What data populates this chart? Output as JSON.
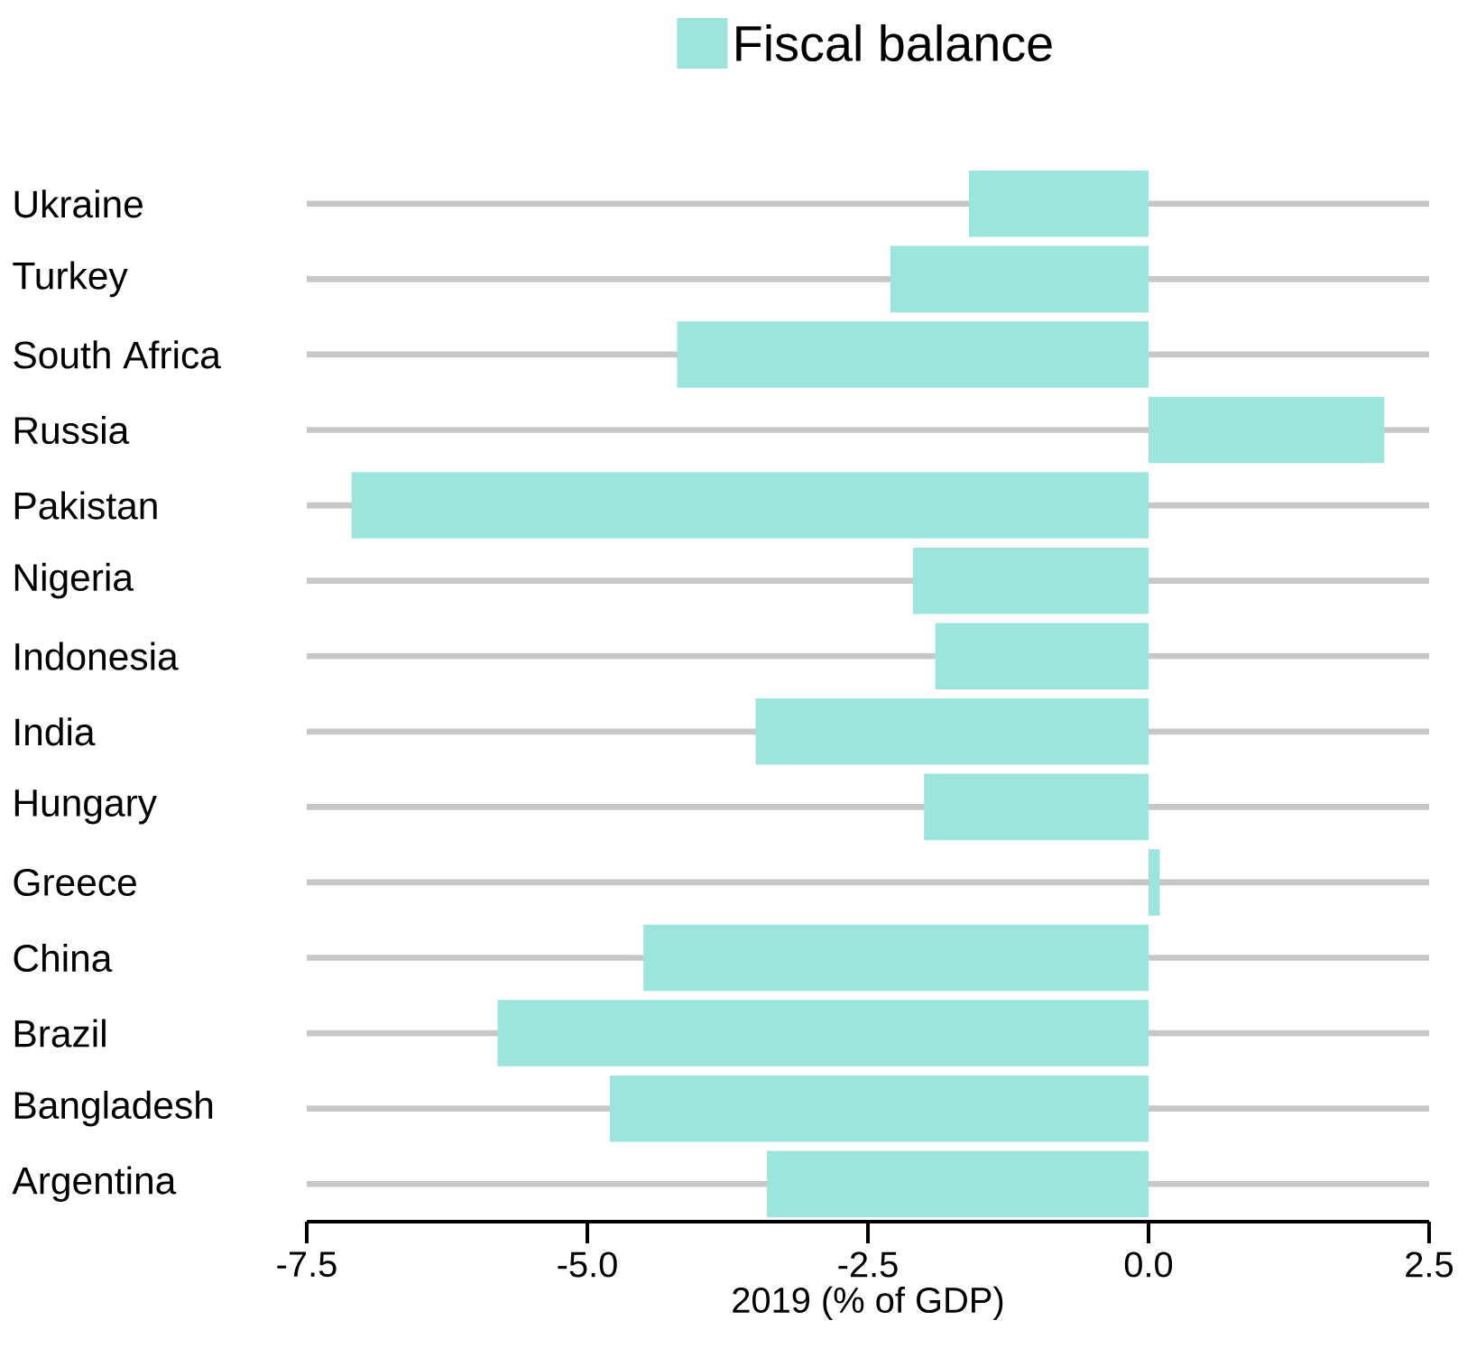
{
  "chart_data": {
    "type": "bar",
    "orientation": "horizontal",
    "xlabel": "2019 (% of GDP)",
    "categories": [
      "Ukraine",
      "Turkey",
      "South Africa",
      "Russia",
      "Pakistan",
      "Nigeria",
      "Indonesia",
      "India",
      "Hungary",
      "Greece",
      "China",
      "Brazil",
      "Bangladesh",
      "Argentina"
    ],
    "series": [
      {
        "name": "Fiscal balance",
        "color": "#9ce5dd",
        "values": [
          -1.6,
          -2.3,
          -4.2,
          2.1,
          -7.1,
          -2.1,
          -1.9,
          -3.5,
          -2.0,
          0.1,
          -4.5,
          -5.8,
          -4.8,
          -3.4
        ]
      }
    ],
    "xlim": [
      -7.5,
      2.5
    ],
    "xticks": [
      -7.5,
      {
        "value": -5,
        "label": "-5.0"
      },
      -2.5,
      {
        "value": 0,
        "label": "0.0"
      },
      2.5
    ],
    "grid": "y",
    "legend": "top"
  }
}
